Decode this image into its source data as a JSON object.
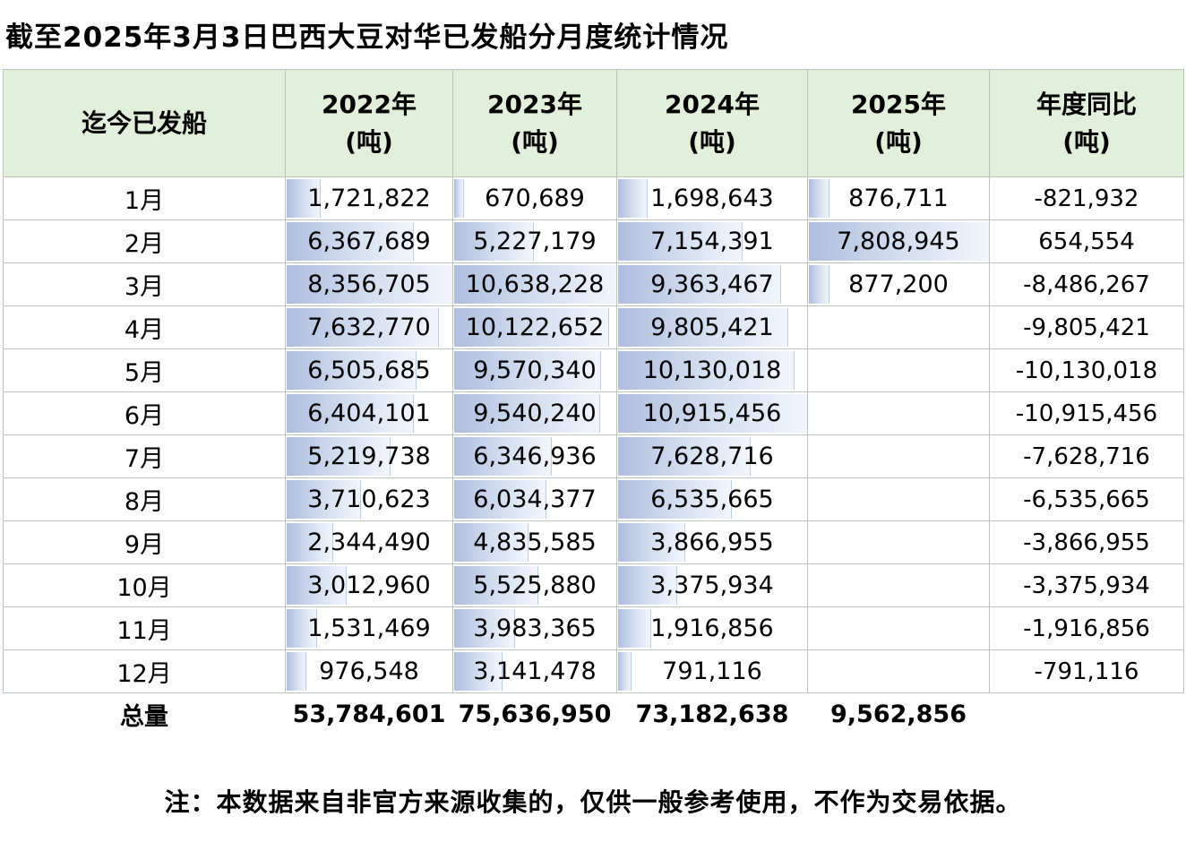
{
  "title": "截至2025年3月3日巴西大豆对华已发船分月度统计情况",
  "note": "注：本数据来自非官方来源收集的，仅供一般参考使用，不作为交易依据。",
  "colors": {
    "header_bg": "#e2efda",
    "border": "#b7c6b7",
    "bar_start": "#aebede",
    "bar_mid": "#d6e0f1",
    "bar_end": "#f2f5fb",
    "bar_edge": "#bccbe6"
  },
  "chart_data": {
    "type": "table",
    "title": "截至2025年3月3日巴西大豆对华已发船分月度统计情况",
    "columns": [
      {
        "label": "迄今已发船",
        "sub": ""
      },
      {
        "label": "2022年",
        "sub": "(吨)"
      },
      {
        "label": "2023年",
        "sub": "(吨)"
      },
      {
        "label": "2024年",
        "sub": "(吨)"
      },
      {
        "label": "2025年",
        "sub": "(吨)"
      },
      {
        "label": "年度同比",
        "sub": "(吨)"
      }
    ],
    "rows": [
      {
        "month": "1月",
        "values": [
          "1,721,822",
          "670,689",
          "1,698,643",
          "876,711"
        ],
        "yoy": "-821,932"
      },
      {
        "month": "2月",
        "values": [
          "6,367,689",
          "5,227,179",
          "7,154,391",
          "7,808,945"
        ],
        "yoy": "654,554"
      },
      {
        "month": "3月",
        "values": [
          "8,356,705",
          "10,638,228",
          "9,363,467",
          "877,200"
        ],
        "yoy": "-8,486,267"
      },
      {
        "month": "4月",
        "values": [
          "7,632,770",
          "10,122,652",
          "9,805,421",
          ""
        ],
        "yoy": "-9,805,421"
      },
      {
        "month": "5月",
        "values": [
          "6,505,685",
          "9,570,340",
          "10,130,018",
          ""
        ],
        "yoy": "-10,130,018"
      },
      {
        "month": "6月",
        "values": [
          "6,404,101",
          "9,540,240",
          "10,915,456",
          ""
        ],
        "yoy": "-10,915,456"
      },
      {
        "month": "7月",
        "values": [
          "5,219,738",
          "6,346,936",
          "7,628,716",
          ""
        ],
        "yoy": "-7,628,716"
      },
      {
        "month": "8月",
        "values": [
          "3,710,623",
          "6,034,377",
          "6,535,665",
          ""
        ],
        "yoy": "-6,535,665"
      },
      {
        "month": "9月",
        "values": [
          "2,344,490",
          "4,835,585",
          "3,866,955",
          ""
        ],
        "yoy": "-3,866,955"
      },
      {
        "month": "10月",
        "values": [
          "3,012,960",
          "5,525,880",
          "3,375,934",
          ""
        ],
        "yoy": "-3,375,934"
      },
      {
        "month": "11月",
        "values": [
          "1,531,469",
          "3,983,365",
          "1,916,856",
          ""
        ],
        "yoy": "-1,916,856"
      },
      {
        "month": "12月",
        "values": [
          "976,548",
          "3,141,478",
          "791,116",
          ""
        ],
        "yoy": "-791,116"
      }
    ],
    "totals": {
      "label": "总量",
      "values": [
        "53,784,601",
        "75,636,950",
        "73,182,638",
        "9,562,856"
      ],
      "yoy": ""
    }
  }
}
